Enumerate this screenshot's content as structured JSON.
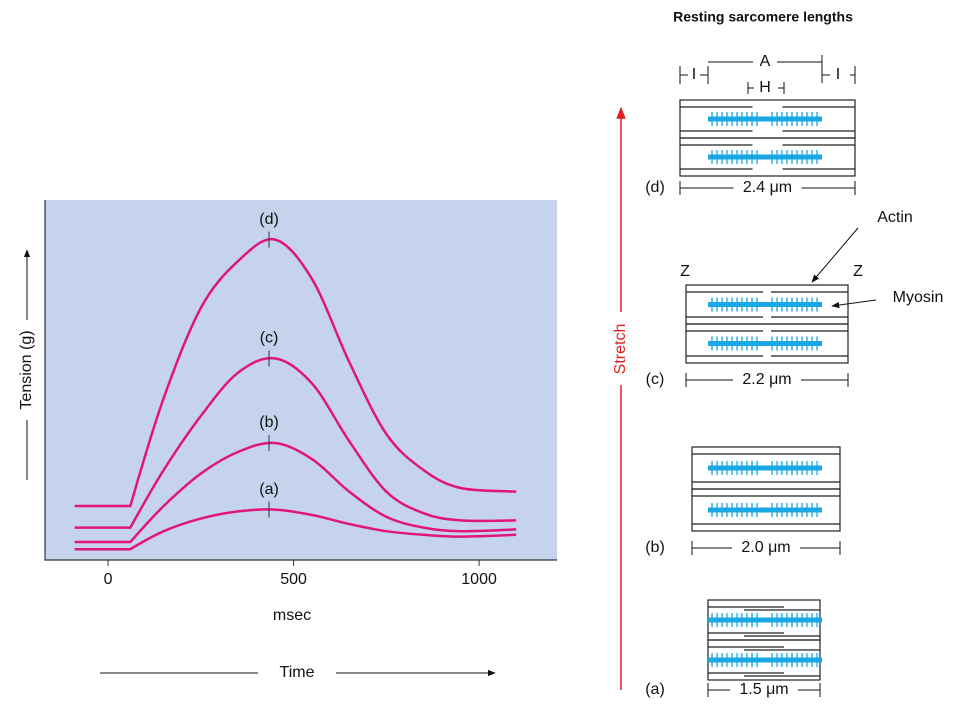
{
  "chart_data": {
    "type": "line",
    "x": [
      -90,
      60,
      150,
      250,
      350,
      450,
      550,
      650,
      750,
      850,
      950,
      1100
    ],
    "series": [
      {
        "name": "(a)",
        "color": "#e0157f",
        "values": [
          3,
          3,
          8,
          11.5,
          13.5,
          14,
          12.5,
          10,
          8,
          7,
          6.5,
          7
        ]
      },
      {
        "name": "(b)",
        "color": "#e0157f",
        "values": [
          5,
          5,
          15,
          24,
          30,
          32.5,
          28,
          19,
          12,
          9,
          8,
          8.5
        ]
      },
      {
        "name": "(c)",
        "color": "#e0157f",
        "values": [
          9,
          9,
          25,
          40,
          52,
          56,
          49,
          33,
          19,
          13,
          11,
          11
        ]
      },
      {
        "name": "(d)",
        "color": "#e0157f",
        "values": [
          15,
          15,
          45,
          70,
          83,
          89,
          78,
          55,
          35,
          25,
          20,
          19
        ]
      }
    ],
    "xlim": [
      -170,
      1210
    ],
    "ylim": [
      0,
      100
    ],
    "xticks": [
      0,
      500,
      1000
    ],
    "x_label": "msec",
    "y_label": "Tension (g)",
    "time_label": "Time",
    "background": "#c5d3ec"
  },
  "diagram": {
    "title": "Resting sarcomere lengths",
    "stretch_label": "Stretch",
    "actin_label": "Actin",
    "myosin_label": "Myosin",
    "z_label": "Z",
    "band_a": "A",
    "band_h": "H",
    "band_i": "I",
    "sarcomeres": [
      {
        "label": "(d)",
        "length": "2.4 μm"
      },
      {
        "label": "(c)",
        "length": "2.2 μm"
      },
      {
        "label": "(b)",
        "length": "2.0 μm"
      },
      {
        "label": "(a)",
        "length": "1.5 μm"
      }
    ]
  }
}
